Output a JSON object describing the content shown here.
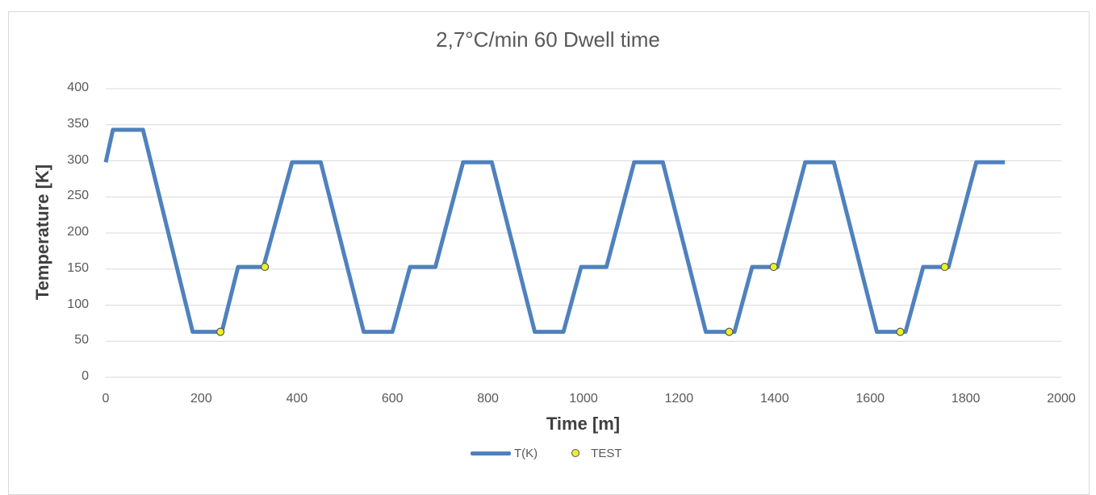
{
  "chart_data": {
    "type": "line",
    "title": "2,7°C/min 60 Dwell time",
    "xlabel": "Time [m]",
    "ylabel": "Temperature [K]",
    "xlim": [
      0,
      2000
    ],
    "ylim": [
      0,
      400
    ],
    "x_ticks": [
      "0",
      "200",
      "400",
      "600",
      "800",
      "1000",
      "1200",
      "1400",
      "1600",
      "1800",
      "2000"
    ],
    "y_ticks": [
      "0",
      "50",
      "100",
      "150",
      "200",
      "250",
      "300",
      "350",
      "400"
    ],
    "grid": true,
    "legend_position": "bottom",
    "colors": {
      "line": "#4f81bd",
      "marker": "#ebf12a",
      "grid": "#d9d9d9"
    },
    "series": [
      {
        "name": "T(K)",
        "type": "line",
        "x": [
          0,
          15,
          78,
          182,
          243,
          277,
          330,
          390,
          450,
          540,
          600,
          637,
          690,
          748,
          808,
          898,
          958,
          995,
          1048,
          1106,
          1166,
          1256,
          1316,
          1353,
          1406,
          1464,
          1524,
          1614,
          1674,
          1711,
          1764,
          1822,
          1882
        ],
        "y": [
          298,
          343,
          343,
          63,
          63,
          153,
          153,
          298,
          298,
          63,
          63,
          153,
          153,
          298,
          298,
          63,
          63,
          153,
          153,
          298,
          298,
          63,
          63,
          153,
          153,
          298,
          298,
          63,
          63,
          153,
          153,
          298,
          298
        ]
      },
      {
        "name": "TEST",
        "type": "scatter",
        "x": [
          240,
          333,
          1305,
          1398,
          1663,
          1756
        ],
        "y": [
          63,
          153,
          63,
          153,
          63,
          153
        ]
      }
    ]
  }
}
